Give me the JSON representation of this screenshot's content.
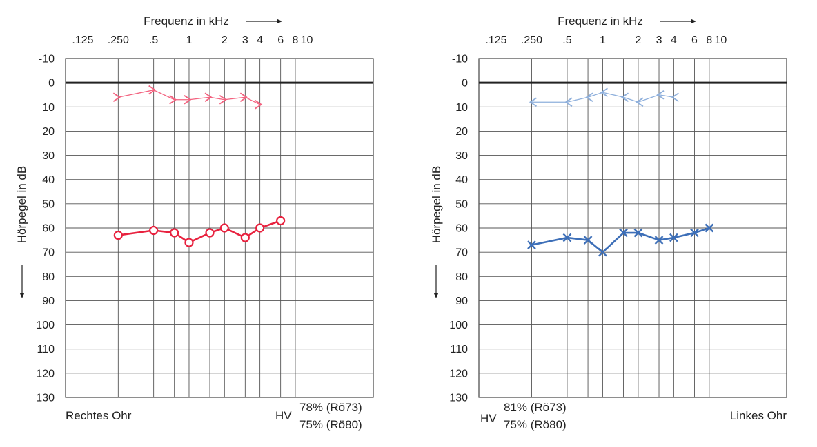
{
  "chart_data": [
    {
      "type": "line",
      "panel": "left",
      "xlabel": "Frequenz in kHz",
      "ylabel": "Hörpegel in dB",
      "x_scale": "log",
      "x_ticks": [
        0.125,
        0.25,
        0.5,
        1,
        2,
        3,
        4,
        6,
        8,
        10
      ],
      "x_tick_labels": [
        ".125",
        ".250",
        ".5",
        "1",
        "2",
        "3",
        "4",
        "6",
        "8",
        "10"
      ],
      "x_gridlines": [
        0.25,
        0.5,
        0.75,
        1,
        1.5,
        2,
        3,
        4,
        6,
        8
      ],
      "y_ticks": [
        -10,
        0,
        10,
        20,
        30,
        40,
        50,
        60,
        70,
        80,
        90,
        100,
        110,
        120,
        130
      ],
      "ylim": [
        -10,
        130
      ],
      "y_inverted": true,
      "zero_line": 0,
      "grid": true,
      "ear_label": "Rechtes Ohr",
      "hv_label": "HV",
      "hv_values": [
        "78% (Rö73)",
        "75% (Rö80)"
      ],
      "series": [
        {
          "kind": "bone",
          "color": "#f3627f",
          "marker": "chevron-right",
          "x": [
            0.25,
            0.5,
            0.75,
            1,
            1.5,
            2,
            3,
            4
          ],
          "values": [
            6,
            3,
            7,
            7,
            6,
            7,
            6,
            9
          ]
        },
        {
          "kind": "air",
          "color": "#e8213e",
          "marker": "circle",
          "x": [
            0.25,
            0.5,
            0.75,
            1,
            1.5,
            2,
            3,
            4,
            6
          ],
          "values": [
            63,
            61,
            62,
            66,
            62,
            60,
            64,
            60,
            57
          ]
        }
      ]
    },
    {
      "type": "line",
      "panel": "right",
      "xlabel": "Frequenz in kHz",
      "ylabel": "Hörpegel in dB",
      "x_scale": "log",
      "x_ticks": [
        0.125,
        0.25,
        0.5,
        1,
        2,
        3,
        4,
        6,
        8,
        10
      ],
      "x_tick_labels": [
        ".125",
        ".250",
        ".5",
        "1",
        "2",
        "3",
        "4",
        "6",
        "8",
        "10"
      ],
      "x_gridlines": [
        0.25,
        0.5,
        0.75,
        1,
        1.5,
        2,
        3,
        4,
        6,
        8
      ],
      "y_ticks": [
        -10,
        0,
        10,
        20,
        30,
        40,
        50,
        60,
        70,
        80,
        90,
        100,
        110,
        120,
        130
      ],
      "ylim": [
        -10,
        130
      ],
      "y_inverted": true,
      "zero_line": 0,
      "grid": true,
      "ear_label": "Linkes Ohr",
      "hv_label": "HV",
      "hv_values": [
        "81% (Rö73)",
        "75% (Rö80)"
      ],
      "series": [
        {
          "kind": "bone",
          "color": "#8fb0dc",
          "marker": "chevron-left",
          "x": [
            0.25,
            0.5,
            0.75,
            1,
            1.5,
            2,
            3,
            4
          ],
          "values": [
            8,
            8,
            6,
            4,
            6,
            8,
            5,
            6
          ]
        },
        {
          "kind": "air",
          "color": "#3d6fb8",
          "marker": "cross",
          "x": [
            0.25,
            0.5,
            0.75,
            1,
            1.5,
            2,
            3,
            4,
            6,
            8
          ],
          "values": [
            67,
            64,
            65,
            70,
            62,
            62,
            65,
            64,
            62,
            60
          ]
        }
      ]
    }
  ]
}
